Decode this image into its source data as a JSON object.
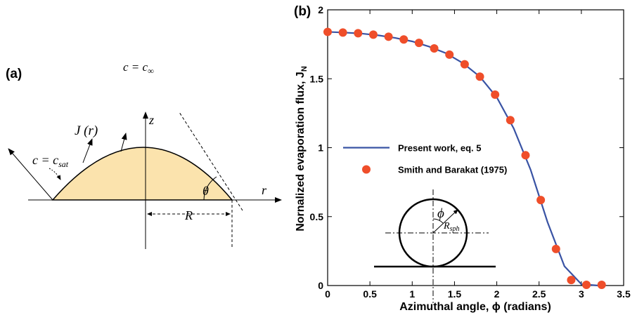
{
  "diagram": {
    "label": "(a)",
    "far_field": {
      "text": "c = c",
      "subscript": "∞"
    },
    "flux": "J (r)",
    "z_axis": "z",
    "surface": {
      "text": "c = c",
      "subscript": "sat"
    },
    "angle": "θ",
    "r_axis": "r",
    "radius": "R"
  },
  "chart_data": {
    "type": "line",
    "label": "(b)",
    "x_label": "Azimuthal angle, ϕ (radians)",
    "y_label": {
      "text": "Nornalized evaporation flux, J",
      "subscript": "N"
    },
    "xlim": [
      0,
      3.5
    ],
    "xticks": [
      0,
      0.5,
      1,
      1.5,
      2,
      2.5,
      3,
      3.5
    ],
    "ylim": [
      0,
      2
    ],
    "yticks": [
      0,
      0.5,
      1,
      1.5,
      2
    ],
    "legend": "center-left",
    "series": [
      {
        "name": "Present work, eq. 5",
        "type": "line",
        "color": "#3953a4",
        "x": [
          0,
          0.2,
          0.4,
          0.6,
          0.8,
          1.0,
          1.2,
          1.4,
          1.6,
          1.8,
          2.0,
          2.2,
          2.4,
          2.6,
          2.8,
          3.0,
          3.2
        ],
        "values": [
          1.84,
          1.835,
          1.828,
          1.815,
          1.796,
          1.771,
          1.733,
          1.685,
          1.613,
          1.515,
          1.365,
          1.14,
          0.84,
          0.46,
          0.14,
          0.01,
          0
        ]
      },
      {
        "name": "Smith and Barakat (1975)",
        "type": "scatter",
        "color": "#ef4e2a",
        "x": [
          0,
          0.18,
          0.36,
          0.54,
          0.72,
          0.9,
          1.08,
          1.26,
          1.44,
          1.62,
          1.8,
          1.98,
          2.16,
          2.34,
          2.52,
          2.7,
          2.88,
          3.06,
          3.24
        ],
        "values": [
          1.84,
          1.835,
          1.83,
          1.82,
          1.805,
          1.785,
          1.76,
          1.72,
          1.675,
          1.605,
          1.515,
          1.385,
          1.2,
          0.945,
          0.62,
          0.265,
          0.04,
          0.005,
          0.005
        ]
      }
    ],
    "inset": {
      "angle": "ϕ",
      "radius": {
        "text": "R",
        "subscript": "sph"
      }
    }
  }
}
